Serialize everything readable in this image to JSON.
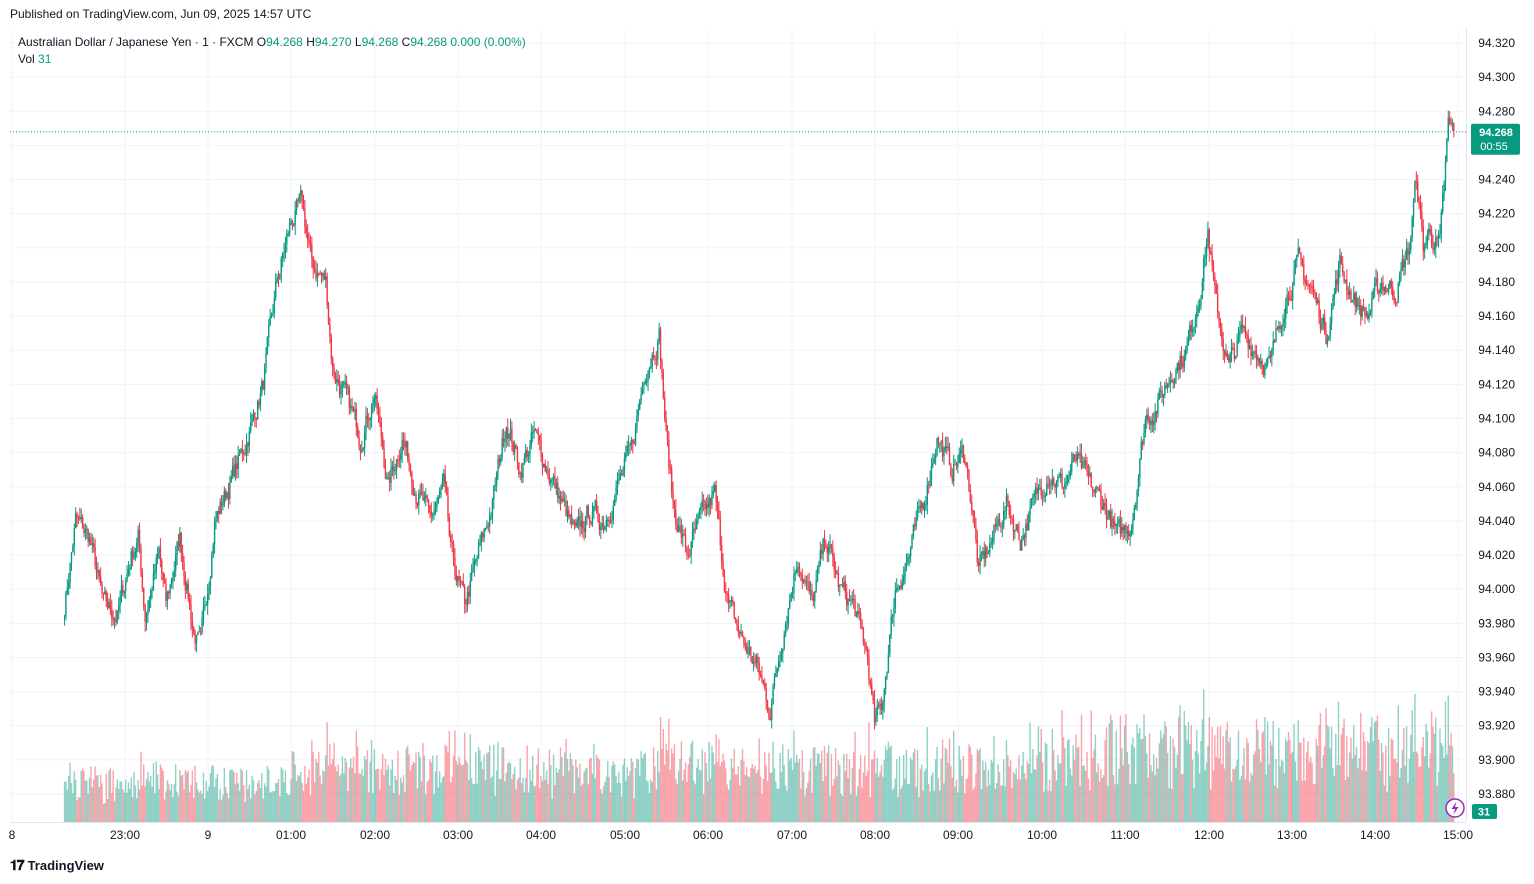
{
  "header": {
    "published": "Published on TradingView.com, Jun 09, 2025 14:57 UTC"
  },
  "legend": {
    "symbol": "Australian Dollar / Japanese Yen · 1 · FXCM",
    "o_label": "O",
    "o": "94.268",
    "h_label": "H",
    "h": "94.270",
    "l_label": "L",
    "l": "94.268",
    "c_label": "C",
    "c": "94.268",
    "change": "0.000 (0.00%)",
    "vol_label": "Vol",
    "vol": "31"
  },
  "price_badge": {
    "price": "94.268",
    "countdown": "00:55"
  },
  "vol_badge": "31",
  "footer": {
    "brand": "TradingView"
  },
  "colors": {
    "up": "#089981",
    "down": "#f23645",
    "grid": "#f0f3fa",
    "badge": "#089981"
  },
  "chart_data": {
    "type": "candlestick",
    "title": "Australian Dollar / Japanese Yen · 1 · FXCM",
    "ylim": [
      93.865,
      94.33
    ],
    "y_ticks": [
      "94.320",
      "94.300",
      "94.280",
      "94.260",
      "94.240",
      "94.220",
      "94.200",
      "94.180",
      "94.160",
      "94.140",
      "94.120",
      "94.100",
      "94.080",
      "94.060",
      "94.040",
      "94.020",
      "94.000",
      "93.980",
      "93.960",
      "93.940",
      "93.920",
      "93.900",
      "93.880"
    ],
    "x_ticks": [
      "8",
      "23:00",
      "9",
      "01:00",
      "02:00",
      "03:00",
      "04:00",
      "05:00",
      "06:00",
      "07:00",
      "08:00",
      "09:00",
      "10:00",
      "11:00",
      "12:00",
      "13:00",
      "14:00",
      "15:00"
    ],
    "last_price": 94.268,
    "close_path": [
      [
        "22:17",
        93.99
      ],
      [
        "22:25",
        94.04
      ],
      [
        "22:35",
        94.03
      ],
      [
        "22:45",
        93.99
      ],
      [
        "22:55",
        93.985
      ],
      [
        "23:05",
        94.02
      ],
      [
        "23:10",
        94.03
      ],
      [
        "23:15",
        93.985
      ],
      [
        "23:25",
        94.02
      ],
      [
        "23:30",
        93.99
      ],
      [
        "23:40",
        94.03
      ],
      [
        "23:50",
        93.975
      ],
      [
        "23:55",
        93.965
      ],
      [
        "00:05",
        94.04
      ],
      [
        "00:15",
        94.06
      ],
      [
        "00:25",
        94.08
      ],
      [
        "00:40",
        94.12
      ],
      [
        "00:50",
        94.18
      ],
      [
        "01:00",
        94.215
      ],
      [
        "01:08",
        94.225
      ],
      [
        "01:15",
        94.19
      ],
      [
        "01:25",
        94.18
      ],
      [
        "01:30",
        94.13
      ],
      [
        "01:40",
        94.11
      ],
      [
        "01:50",
        94.09
      ],
      [
        "02:00",
        94.115
      ],
      [
        "02:10",
        94.06
      ],
      [
        "02:20",
        94.09
      ],
      [
        "02:30",
        94.06
      ],
      [
        "02:40",
        94.04
      ],
      [
        "02:50",
        94.06
      ],
      [
        "02:55",
        94.02
      ],
      [
        "03:05",
        93.99
      ],
      [
        "03:15",
        94.02
      ],
      [
        "03:25",
        94.05
      ],
      [
        "03:35",
        94.1
      ],
      [
        "03:45",
        94.07
      ],
      [
        "03:55",
        94.09
      ],
      [
        "04:05",
        94.07
      ],
      [
        "04:15",
        94.05
      ],
      [
        "04:25",
        94.03
      ],
      [
        "04:35",
        94.045
      ],
      [
        "04:45",
        94.04
      ],
      [
        "04:55",
        94.06
      ],
      [
        "05:05",
        94.08
      ],
      [
        "05:15",
        94.13
      ],
      [
        "05:25",
        94.15
      ],
      [
        "05:30",
        94.09
      ],
      [
        "05:35",
        94.05
      ],
      [
        "05:45",
        94.02
      ],
      [
        "05:55",
        94.04
      ],
      [
        "06:05",
        94.055
      ],
      [
        "06:10",
        94.02
      ],
      [
        "06:15",
        93.99
      ],
      [
        "06:25",
        93.97
      ],
      [
        "06:35",
        93.955
      ],
      [
        "06:45",
        93.93
      ],
      [
        "06:55",
        93.98
      ],
      [
        "07:05",
        94.02
      ],
      [
        "07:15",
        93.99
      ],
      [
        "07:25",
        94.03
      ],
      [
        "07:35",
        94.0
      ],
      [
        "07:45",
        93.99
      ],
      [
        "07:55",
        93.96
      ],
      [
        "08:00",
        93.92
      ],
      [
        "08:05",
        93.93
      ],
      [
        "08:15",
        94.0
      ],
      [
        "08:25",
        94.02
      ],
      [
        "08:35",
        94.05
      ],
      [
        "08:45",
        94.09
      ],
      [
        "08:55",
        94.07
      ],
      [
        "09:05",
        94.08
      ],
      [
        "09:10",
        94.05
      ],
      [
        "09:15",
        94.01
      ],
      [
        "09:25",
        94.03
      ],
      [
        "09:35",
        94.05
      ],
      [
        "09:45",
        94.03
      ],
      [
        "09:55",
        94.05
      ],
      [
        "10:05",
        94.07
      ],
      [
        "10:15",
        94.06
      ],
      [
        "10:25",
        94.075
      ],
      [
        "10:35",
        94.06
      ],
      [
        "10:45",
        94.05
      ],
      [
        "10:55",
        94.03
      ],
      [
        "11:05",
        94.04
      ],
      [
        "11:15",
        94.1
      ],
      [
        "11:25",
        94.11
      ],
      [
        "11:35",
        94.13
      ],
      [
        "11:45",
        94.14
      ],
      [
        "11:55",
        94.18
      ],
      [
        "12:00",
        94.21
      ],
      [
        "12:05",
        94.17
      ],
      [
        "12:15",
        94.13
      ],
      [
        "12:25",
        94.15
      ],
      [
        "12:35",
        94.14
      ],
      [
        "12:45",
        94.13
      ],
      [
        "12:55",
        94.17
      ],
      [
        "13:05",
        94.19
      ],
      [
        "13:15",
        94.175
      ],
      [
        "13:25",
        94.15
      ],
      [
        "13:35",
        94.19
      ],
      [
        "13:45",
        94.17
      ],
      [
        "13:55",
        94.16
      ],
      [
        "14:05",
        94.18
      ],
      [
        "14:15",
        94.175
      ],
      [
        "14:25",
        94.2
      ],
      [
        "14:30",
        94.24
      ],
      [
        "14:35",
        94.2
      ],
      [
        "14:40",
        94.21
      ],
      [
        "14:47",
        94.2
      ],
      [
        "14:53",
        94.27
      ],
      [
        "14:57",
        94.268
      ]
    ],
    "volume_range": [
      0,
      100
    ]
  }
}
